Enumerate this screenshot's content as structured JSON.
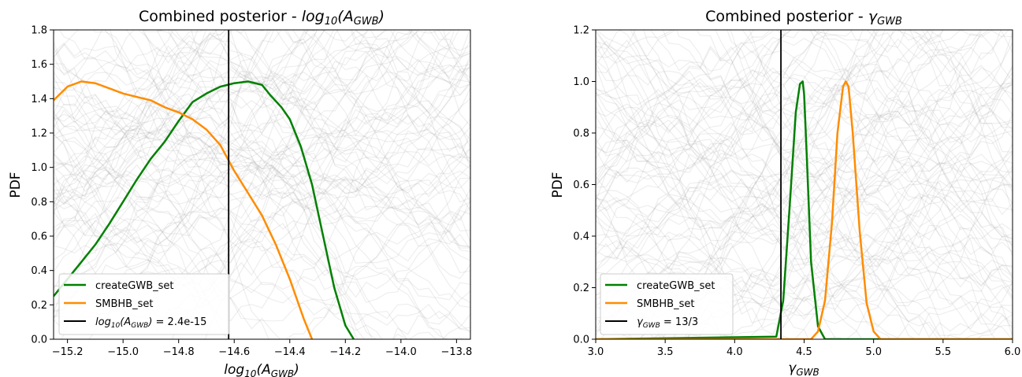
{
  "chart_data": [
    {
      "type": "line",
      "title": "Combined posterior - log10(AGWB)",
      "xlabel": "log10(AGWB)",
      "ylabel": "PDF",
      "xlim": [
        -15.25,
        -13.75
      ],
      "ylim": [
        0,
        1.8
      ],
      "x_ticks": [
        -15.2,
        -15.0,
        -14.8,
        -14.6,
        -14.4,
        -14.2,
        -14.0,
        -13.8
      ],
      "x_tick_labels": [
        "−15.2",
        "−15.0",
        "−14.8",
        "−14.6",
        "−14.4",
        "−14.2",
        "−14.0",
        "−13.8"
      ],
      "y_ticks": [
        0.0,
        0.2,
        0.4,
        0.6,
        0.8,
        1.0,
        1.2,
        1.4,
        1.6,
        1.8
      ],
      "y_tick_labels": [
        "0.0",
        "0.2",
        "0.4",
        "0.6",
        "0.8",
        "1.0",
        "1.2",
        "1.4",
        "1.6",
        "1.8"
      ],
      "grid": false,
      "legend_position": "bottom-left",
      "series": [
        {
          "name": "createGWB_set",
          "color": "#008000",
          "x": [
            -15.25,
            -15.2,
            -15.15,
            -15.1,
            -15.05,
            -15.0,
            -14.95,
            -14.9,
            -14.85,
            -14.8,
            -14.75,
            -14.7,
            -14.65,
            -14.6,
            -14.55,
            -14.5,
            -14.47,
            -14.43,
            -14.4,
            -14.36,
            -14.32,
            -14.28,
            -14.24,
            -14.2,
            -14.17
          ],
          "y": [
            0.25,
            0.35,
            0.45,
            0.55,
            0.67,
            0.8,
            0.93,
            1.05,
            1.15,
            1.27,
            1.38,
            1.43,
            1.47,
            1.49,
            1.5,
            1.48,
            1.42,
            1.35,
            1.28,
            1.12,
            0.9,
            0.6,
            0.3,
            0.08,
            0.0
          ]
        },
        {
          "name": "SMBHB_set",
          "color": "#ff8c00",
          "x": [
            -15.25,
            -15.2,
            -15.15,
            -15.1,
            -15.05,
            -15.0,
            -14.95,
            -14.9,
            -14.85,
            -14.8,
            -14.75,
            -14.7,
            -14.65,
            -14.6,
            -14.55,
            -14.5,
            -14.45,
            -14.4,
            -14.35,
            -14.32
          ],
          "y": [
            1.39,
            1.47,
            1.5,
            1.49,
            1.46,
            1.43,
            1.41,
            1.39,
            1.35,
            1.32,
            1.28,
            1.22,
            1.13,
            0.98,
            0.85,
            0.72,
            0.55,
            0.35,
            0.12,
            0.0
          ]
        }
      ],
      "vline": {
        "x": -14.62,
        "label": "log10(AGWB) = 2.4e-15",
        "color": "#000000"
      }
    },
    {
      "type": "line",
      "title": "Combined posterior - γGWB",
      "xlabel": "γGWB",
      "ylabel": "PDF",
      "xlim": [
        3.0,
        6.0
      ],
      "ylim": [
        0,
        1.2
      ],
      "x_ticks": [
        3.0,
        3.5,
        4.0,
        4.5,
        5.0,
        5.5,
        6.0
      ],
      "x_tick_labels": [
        "3.0",
        "3.5",
        "4.0",
        "4.5",
        "5.0",
        "5.5",
        "6.0"
      ],
      "y_ticks": [
        0.0,
        0.2,
        0.4,
        0.6,
        0.8,
        1.0,
        1.2
      ],
      "y_tick_labels": [
        "0.0",
        "0.2",
        "0.4",
        "0.6",
        "0.8",
        "1.0",
        "1.2"
      ],
      "grid": false,
      "legend_position": "bottom-left",
      "series": [
        {
          "name": "createGWB_set",
          "color": "#008000",
          "x": [
            3.0,
            4.3,
            4.35,
            4.4,
            4.44,
            4.47,
            4.49,
            4.5,
            4.52,
            4.55,
            4.6,
            4.65,
            6.0
          ],
          "y": [
            0.0,
            0.01,
            0.15,
            0.55,
            0.88,
            0.99,
            1.0,
            0.95,
            0.7,
            0.3,
            0.05,
            0.0,
            0.0
          ]
        },
        {
          "name": "SMBHB_set",
          "color": "#ff8c00",
          "x": [
            3.0,
            4.55,
            4.6,
            4.65,
            4.7,
            4.74,
            4.78,
            4.8,
            4.82,
            4.85,
            4.9,
            4.95,
            5.0,
            5.05,
            6.0
          ],
          "y": [
            0.0,
            0.0,
            0.03,
            0.15,
            0.45,
            0.8,
            0.98,
            1.0,
            0.98,
            0.8,
            0.42,
            0.14,
            0.03,
            0.0,
            0.0
          ]
        }
      ],
      "vline": {
        "x": 4.333,
        "label": "γGWB = 13/3",
        "color": "#000000"
      }
    }
  ]
}
